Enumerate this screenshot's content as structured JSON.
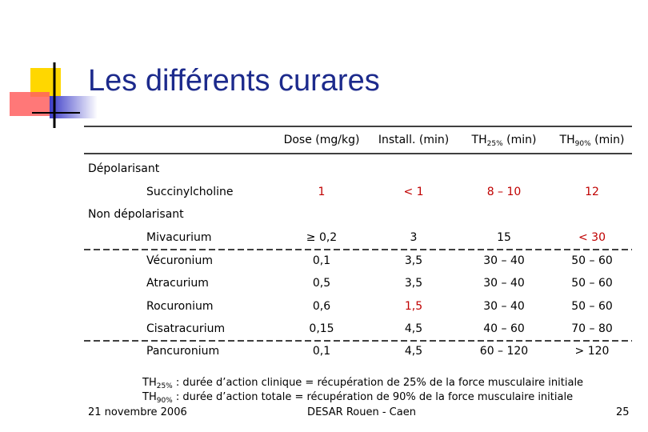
{
  "title": "Les différents curares",
  "table": {
    "columns": [
      {
        "text": "Dose (mg/kg)"
      },
      {
        "text": "Install. (min)"
      },
      {
        "main": "TH",
        "sub": "25%",
        "rest": " (min)"
      },
      {
        "main": "TH",
        "sub": "90%",
        "rest": " (min)"
      }
    ],
    "groups": [
      {
        "label": "Dépolarisant",
        "rows": [
          [
            "Succinylcholine",
            "1",
            "< 1",
            "8 – 10",
            "12"
          ]
        ]
      },
      {
        "label": "Non dépolarisant",
        "rows": [
          [
            "Mivacurium",
            "≥ 0,2",
            "3",
            "15",
            "< 30"
          ],
          [
            "Vécuronium",
            "0,1",
            "3,5",
            "30 – 40",
            "50 – 60"
          ],
          [
            "Atracurium",
            "0,5",
            "3,5",
            "30 – 40",
            "50 – 60"
          ],
          [
            "Rocuronium",
            "0,6",
            "1,5",
            "30 – 40",
            "50 – 60"
          ],
          [
            "Cisatracurium",
            "0,15",
            "4,5",
            "40 – 60",
            "70 – 80"
          ],
          [
            "Pancuronium",
            "0,1",
            "4,5",
            "60 – 120",
            "> 120"
          ]
        ]
      }
    ]
  },
  "notes": [
    {
      "main": "TH",
      "sub": "25%",
      "text": " : durée d’action clinique = récupération de 25% de la force musculaire initiale"
    },
    {
      "main": "TH",
      "sub": "90%",
      "text": " : durée d’action totale = récupération de 90% de la force musculaire initiale"
    }
  ],
  "footer": {
    "date": "21 novembre 2006",
    "center": "DESAR Rouen - Caen",
    "page": "25"
  }
}
